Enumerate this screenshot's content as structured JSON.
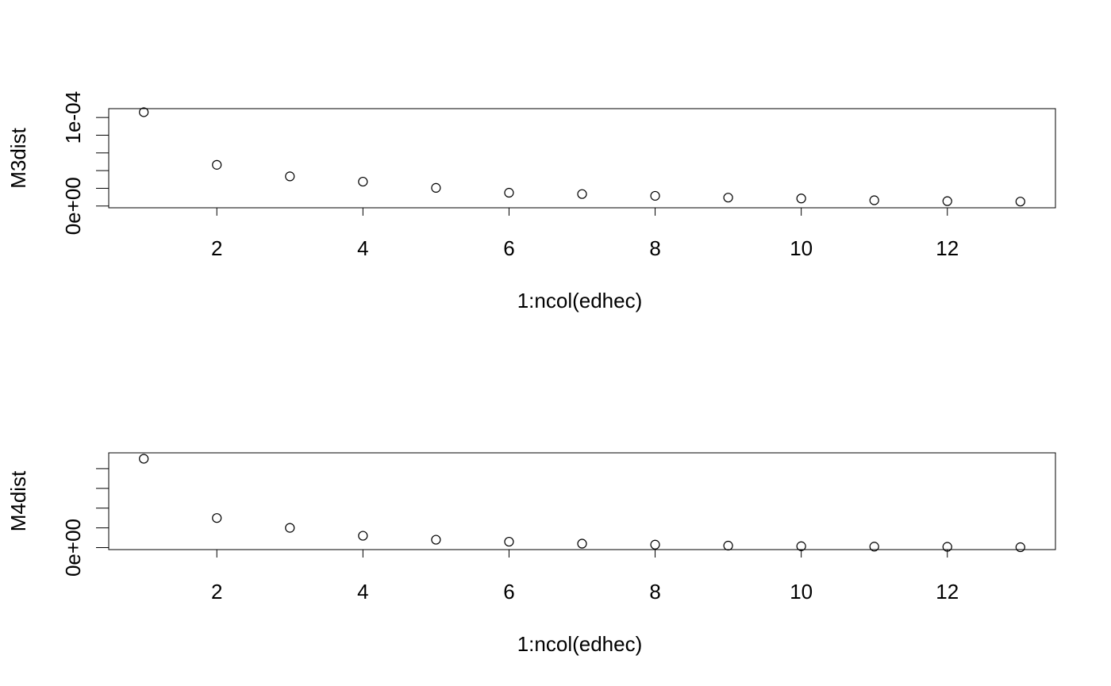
{
  "chart_data": [
    {
      "type": "scatter",
      "title": "",
      "xlabel": "1:ncol(edhec)",
      "ylabel": "M3dist",
      "x": [
        1,
        2,
        3,
        4,
        5,
        6,
        7,
        8,
        9,
        10,
        11,
        12,
        13
      ],
      "y": [
        0.000106,
        4.65e-05,
        3.35e-05,
        2.75e-05,
        2.05e-05,
        1.5e-05,
        1.35e-05,
        1.15e-05,
        9.5e-06,
        8.5e-06,
        6.5e-06,
        5.5e-06,
        5e-06
      ],
      "xlim": [
        0.52,
        13.48
      ],
      "ylim": [
        -2e-06,
        0.00011
      ],
      "x_ticks": [
        2,
        4,
        6,
        8,
        10,
        12
      ],
      "x_tick_labels": [
        "2",
        "4",
        "6",
        "8",
        "10",
        "12"
      ],
      "y_ticks": [
        0,
        2e-05,
        4e-05,
        6e-05,
        8e-05,
        0.0001
      ],
      "y_tick_labels": [
        "0e+00",
        "",
        "",
        "",
        "",
        "1e-04"
      ],
      "marker": "open-circle",
      "grid": false
    },
    {
      "type": "scatter",
      "title": "",
      "xlabel": "1:ncol(edhec)",
      "ylabel": "M4dist",
      "x": [
        1,
        2,
        3,
        4,
        5,
        6,
        7,
        8,
        9,
        10,
        11,
        12,
        13
      ],
      "y": [
        4.5e-06,
        1.5e-06,
        1e-06,
        6e-07,
        4e-07,
        3e-07,
        2e-07,
        1.5e-07,
        1e-07,
        7e-08,
        5e-08,
        4e-08,
        2e-08
      ],
      "xlim": [
        0.52,
        13.48
      ],
      "ylim": [
        -1e-07,
        4.8e-06
      ],
      "x_ticks": [
        2,
        4,
        6,
        8,
        10,
        12
      ],
      "x_tick_labels": [
        "2",
        "4",
        "6",
        "8",
        "10",
        "12"
      ],
      "y_ticks": [
        0,
        1e-06,
        2e-06,
        3e-06,
        4e-06
      ],
      "y_tick_labels": [
        "0e+00",
        "",
        "",
        "",
        ""
      ],
      "marker": "open-circle",
      "grid": false
    }
  ]
}
